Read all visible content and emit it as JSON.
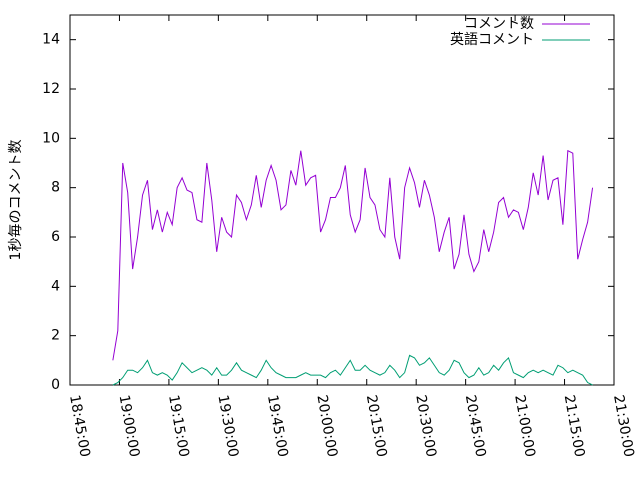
{
  "chart_data": {
    "type": "line",
    "ylabel": "1秒毎のコメント数",
    "xlim": [
      "18:45:00",
      "21:30:00"
    ],
    "xticks": [
      "18:45:00",
      "19:00:00",
      "19:15:00",
      "19:30:00",
      "19:45:00",
      "20:00:00",
      "20:15:00",
      "20:30:00",
      "20:45:00",
      "21:00:00",
      "21:15:00",
      "21:30:00"
    ],
    "ylim": [
      0,
      15
    ],
    "yticks": [
      0,
      2,
      4,
      6,
      8,
      10,
      12,
      14
    ],
    "legend": "top-right",
    "x": [
      "18:58:00",
      "18:59:30",
      "19:01:00",
      "19:02:30",
      "19:04:00",
      "19:05:30",
      "19:07:00",
      "19:08:30",
      "19:10:00",
      "19:11:30",
      "19:13:00",
      "19:14:30",
      "19:16:00",
      "19:17:30",
      "19:19:00",
      "19:20:30",
      "19:22:00",
      "19:23:30",
      "19:25:00",
      "19:26:30",
      "19:28:00",
      "19:29:30",
      "19:31:00",
      "19:32:30",
      "19:34:00",
      "19:35:30",
      "19:37:00",
      "19:38:30",
      "19:40:00",
      "19:41:30",
      "19:43:00",
      "19:44:30",
      "19:46:00",
      "19:47:30",
      "19:49:00",
      "19:50:30",
      "19:52:00",
      "19:53:30",
      "19:55:00",
      "19:56:30",
      "19:58:00",
      "19:59:30",
      "20:01:00",
      "20:02:30",
      "20:04:00",
      "20:05:30",
      "20:07:00",
      "20:08:30",
      "20:10:00",
      "20:11:30",
      "20:13:00",
      "20:14:30",
      "20:16:00",
      "20:17:30",
      "20:19:00",
      "20:20:30",
      "20:22:00",
      "20:23:30",
      "20:25:00",
      "20:26:30",
      "20:28:00",
      "20:29:30",
      "20:31:00",
      "20:32:30",
      "20:34:00",
      "20:35:30",
      "20:37:00",
      "20:38:30",
      "20:40:00",
      "20:41:30",
      "20:43:00",
      "20:44:30",
      "20:46:00",
      "20:47:30",
      "20:49:00",
      "20:50:30",
      "20:52:00",
      "20:53:30",
      "20:55:00",
      "20:56:30",
      "20:58:00",
      "20:59:30",
      "21:01:00",
      "21:02:30",
      "21:04:00",
      "21:05:30",
      "21:07:00",
      "21:08:30",
      "21:10:00",
      "21:11:30",
      "21:13:00",
      "21:14:30",
      "21:16:00",
      "21:17:30",
      "21:19:00",
      "21:20:30",
      "21:22:00",
      "21:23:30"
    ],
    "series": [
      {
        "name": "コメント数",
        "color": "#9400d3",
        "values": [
          1,
          2.2,
          9,
          7.8,
          4.7,
          6,
          7.7,
          8.3,
          6.3,
          7.1,
          6.2,
          7,
          6.5,
          8,
          8.4,
          7.9,
          7.8,
          6.7,
          6.6,
          9,
          7.5,
          5.4,
          6.8,
          6.2,
          6,
          7.7,
          7.4,
          6.7,
          7.3,
          8.5,
          7.2,
          8.3,
          8.9,
          8.3,
          7.1,
          7.3,
          8.7,
          8.1,
          9.5,
          8.1,
          8.4,
          8.5,
          6.2,
          6.7,
          7.6,
          7.6,
          8,
          8.9,
          6.9,
          6.2,
          6.7,
          8.8,
          7.6,
          7.3,
          6.3,
          6,
          8.4,
          6,
          5.1,
          8,
          8.8,
          8.2,
          7.2,
          8.3,
          7.7,
          6.8,
          5.4,
          6.2,
          6.8,
          4.7,
          5.3,
          6.9,
          5.3,
          4.6,
          5,
          6.3,
          5.4,
          6.2,
          7.4,
          7.6,
          6.8,
          7.1,
          7,
          6.3,
          7.2,
          8.6,
          7.7,
          9.3,
          7.5,
          8.3,
          8.4,
          6.5,
          9.5,
          9.4,
          5.1,
          5.9,
          6.6,
          8
        ]
      },
      {
        "name": "英語コメント",
        "color": "#009e73",
        "values": [
          0,
          0.1,
          0.3,
          0.6,
          0.6,
          0.5,
          0.7,
          1.0,
          0.5,
          0.4,
          0.5,
          0.4,
          0.2,
          0.5,
          0.9,
          0.7,
          0.5,
          0.6,
          0.7,
          0.6,
          0.4,
          0.7,
          0.4,
          0.4,
          0.6,
          0.9,
          0.6,
          0.5,
          0.4,
          0.3,
          0.6,
          1.0,
          0.7,
          0.5,
          0.4,
          0.3,
          0.3,
          0.3,
          0.4,
          0.5,
          0.4,
          0.4,
          0.4,
          0.3,
          0.5,
          0.6,
          0.4,
          0.7,
          1.0,
          0.6,
          0.6,
          0.8,
          0.6,
          0.5,
          0.4,
          0.5,
          0.8,
          0.6,
          0.3,
          0.5,
          1.2,
          1.1,
          0.8,
          0.9,
          1.1,
          0.8,
          0.5,
          0.4,
          0.6,
          1.0,
          0.9,
          0.5,
          0.3,
          0.4,
          0.7,
          0.4,
          0.5,
          0.8,
          0.6,
          0.9,
          1.1,
          0.5,
          0.4,
          0.3,
          0.5,
          0.6,
          0.5,
          0.6,
          0.5,
          0.4,
          0.8,
          0.7,
          0.5,
          0.6,
          0.5,
          0.4,
          0.1,
          0.0
        ]
      }
    ]
  }
}
